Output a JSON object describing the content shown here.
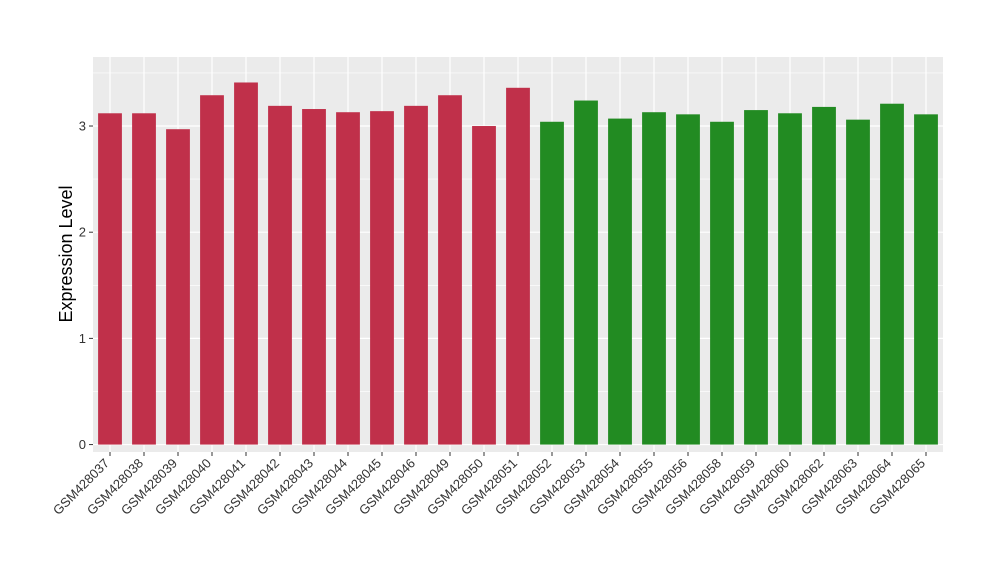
{
  "chart_data": {
    "type": "bar",
    "title": "",
    "xlabel": "",
    "ylabel": "Expression Level",
    "ylim": [
      -0.07,
      3.65
    ],
    "yticks": [
      0,
      1,
      2,
      3
    ],
    "grid": true,
    "legend": "none",
    "categories": [
      "GSM428037",
      "GSM428038",
      "GSM428039",
      "GSM428040",
      "GSM428041",
      "GSM428042",
      "GSM428043",
      "GSM428044",
      "GSM428045",
      "GSM428046",
      "GSM428049",
      "GSM428050",
      "GSM428051",
      "GSM428052",
      "GSM428053",
      "GSM428054",
      "GSM428055",
      "GSM428056",
      "GSM428058",
      "GSM428059",
      "GSM428060",
      "GSM428062",
      "GSM428063",
      "GSM428064",
      "GSM428065"
    ],
    "values": [
      3.12,
      3.12,
      2.97,
      3.29,
      3.41,
      3.19,
      3.16,
      3.13,
      3.14,
      3.19,
      3.29,
      3.0,
      3.36,
      3.04,
      3.24,
      3.07,
      3.13,
      3.11,
      3.04,
      3.15,
      3.12,
      3.18,
      3.06,
      3.21,
      3.11
    ],
    "groups": [
      "a",
      "a",
      "a",
      "a",
      "a",
      "a",
      "a",
      "a",
      "a",
      "a",
      "a",
      "a",
      "a",
      "b",
      "b",
      "b",
      "b",
      "b",
      "b",
      "b",
      "b",
      "b",
      "b",
      "b",
      "b"
    ],
    "group_colors": {
      "a": "#c0304a",
      "b": "#228b22"
    },
    "panel_background": "#ebebeb",
    "grid_color": "#ffffff"
  }
}
